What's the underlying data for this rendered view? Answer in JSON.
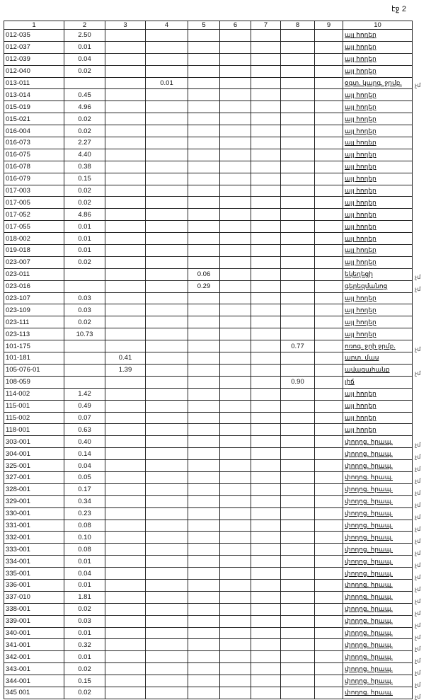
{
  "page_number": "էջ 2",
  "headers": [
    "1",
    "2",
    "3",
    "4",
    "5",
    "6",
    "7",
    "8",
    "9",
    "10"
  ],
  "margin_mark": "չմ",
  "rows": [
    {
      "c1": "012-035",
      "c2": "2.50",
      "c10": "այլ հողեր"
    },
    {
      "c1": "012-037",
      "c2": "0.01",
      "c10": "այլ հողեր"
    },
    {
      "c1": "012-039",
      "c2": "0.04",
      "c10": "այլ հողեր"
    },
    {
      "c1": "012-040",
      "c2": "0.02",
      "c10": "այլ հողեր"
    },
    {
      "c1": "013-011",
      "c4": "0.01",
      "c10": "օգտ. կարգ. ջրմբ.",
      "mark": true
    },
    {
      "c1": "013-014",
      "c2": "0.45",
      "c10": "այլ հողեր"
    },
    {
      "c1": "015-019",
      "c2": "4.96",
      "c10": "այլ հողեր"
    },
    {
      "c1": "015-021",
      "c2": "0.02",
      "c10": "այլ հողեր"
    },
    {
      "c1": "016-004",
      "c2": "0.02",
      "c10": "այլ հողեր"
    },
    {
      "c1": "016-073",
      "c2": "2.27",
      "c10": "այլ հողեր"
    },
    {
      "c1": "016-075",
      "c2": "4.40",
      "c10": "այլ հողեր"
    },
    {
      "c1": "016-078",
      "c2": "0.38",
      "c10": "այլ հողեր"
    },
    {
      "c1": "016-079",
      "c2": "0.15",
      "c10": "այլ հողեր"
    },
    {
      "c1": "017-003",
      "c2": "0.02",
      "c10": "այլ հողեր"
    },
    {
      "c1": "017-005",
      "c2": "0.02",
      "c10": "այլ հողեր"
    },
    {
      "c1": "017-052",
      "c2": "4.86",
      "c10": "այլ հողեր"
    },
    {
      "c1": "017-055",
      "c2": "0.01",
      "c10": "այլ հողեր"
    },
    {
      "c1": "018-002",
      "c2": "0.01",
      "c10": "այլ հողեր"
    },
    {
      "c1": "019-018",
      "c2": "0.01",
      "c10": "այլ հողեր"
    },
    {
      "c1": "023-007",
      "c2": "0.02",
      "c10": "այլ հողեր"
    },
    {
      "c1": "023-011",
      "c5": "0.06",
      "c10": "եկեղեցի",
      "mark": true
    },
    {
      "c1": "023-016",
      "c5": "0.29",
      "c10": "գերեզմանոց",
      "mark": true
    },
    {
      "c1": "023-107",
      "c2": "0.03",
      "c10": "այլ հողեր"
    },
    {
      "c1": "023-109",
      "c2": "0.03",
      "c10": "այլ հողեր"
    },
    {
      "c1": "023-111",
      "c2": "0.02",
      "c10": "այլ հողեր"
    },
    {
      "c1": "023-113",
      "c2": "10.73",
      "c10": "այլ հողեր"
    },
    {
      "c1": "101-175",
      "c8": "0.77",
      "c10": "ոռոգ. ջրի ջրմբ.",
      "mark": true
    },
    {
      "c1": "101-181",
      "c3": "0.41",
      "c10": "արտ. մաս"
    },
    {
      "c1": "105-076-01",
      "c3": "1.39",
      "c10": "ավազահանք",
      "mark": true
    },
    {
      "c1": "108-059",
      "c8": "0.90",
      "c10": "լիճ"
    },
    {
      "c1": "114-002",
      "c2": "1.42",
      "c10": "այլ հողեր"
    },
    {
      "c1": "115-001",
      "c2": "0.49",
      "c10": "այլ հողեր"
    },
    {
      "c1": "115-002",
      "c2": "0.07",
      "c10": "այլ հողեր"
    },
    {
      "c1": "118-001",
      "c2": "0.63",
      "c10": "այլ հողեր"
    },
    {
      "c1": "303-001",
      "c2": "0.40",
      "c10": "փողոց. հրապ.",
      "mark": true
    },
    {
      "c1": "304-001",
      "c2": "0.14",
      "c10": "փողոց. հրապ.",
      "mark": true
    },
    {
      "c1": "325-001",
      "c2": "0.04",
      "c10": "փողոց. հրապ.",
      "mark": true
    },
    {
      "c1": "327-001",
      "c2": "0.05",
      "c10": "փողոց. հրապ.",
      "mark": true
    },
    {
      "c1": "328-001",
      "c2": "0.17",
      "c10": "փողոց. հրապ.",
      "mark": true
    },
    {
      "c1": "329-001",
      "c2": "0.34",
      "c10": "փողոց. հրապ.",
      "mark": true
    },
    {
      "c1": "330-001",
      "c2": "0.23",
      "c10": "փողոց. հրապ.",
      "mark": true
    },
    {
      "c1": "331-001",
      "c2": "0.08",
      "c10": "փողոց. հրապ.",
      "mark": true
    },
    {
      "c1": "332-001",
      "c2": "0.10",
      "c10": "փողոց. հրապ.",
      "mark": true
    },
    {
      "c1": "333-001",
      "c2": "0.08",
      "c10": "փողոց. հրապ.",
      "mark": true
    },
    {
      "c1": "334-001",
      "c2": "0.01",
      "c10": "փողոց. հրապ.",
      "mark": true
    },
    {
      "c1": "335-001",
      "c2": "0.04",
      "c10": "փողոց. հրապ.",
      "mark": true
    },
    {
      "c1": "336-001",
      "c2": "0.01",
      "c10": "փողոց. հրապ.",
      "mark": true
    },
    {
      "c1": "337-010",
      "c2": "1.81",
      "c10": "փողոց. հրապ.",
      "mark": true
    },
    {
      "c1": "338-001",
      "c2": "0.02",
      "c10": "փողոց. հրապ.",
      "mark": true
    },
    {
      "c1": "339-001",
      "c2": "0.03",
      "c10": "փողոց. հրապ.",
      "mark": true
    },
    {
      "c1": "340-001",
      "c2": "0.01",
      "c10": "փողոց. հրապ.",
      "mark": true
    },
    {
      "c1": "341-001",
      "c2": "0.32",
      "c10": "փողոց. հրապ.",
      "mark": true
    },
    {
      "c1": "342-001",
      "c2": "0.01",
      "c10": "փողոց. հրապ.",
      "mark": true
    },
    {
      "c1": "343-001",
      "c2": "0.02",
      "c10": "փողոց. հրապ.",
      "mark": true
    },
    {
      "c1": "344-001",
      "c2": "0.15",
      "c10": "փողոց. հրապ.",
      "mark": true
    },
    {
      "c1": "345 001",
      "c2": "0.02",
      "c10": "փողոց. հրապ.",
      "mark": true
    }
  ]
}
